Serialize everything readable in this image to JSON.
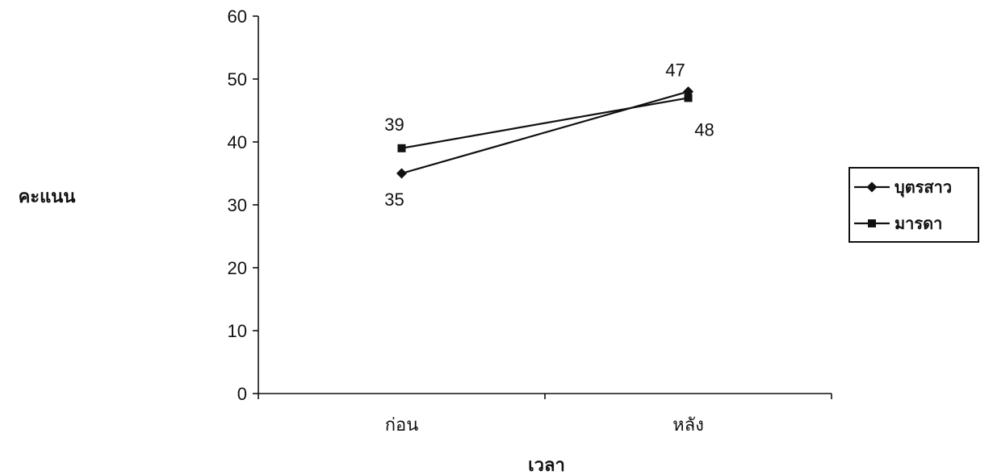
{
  "chart_data": {
    "type": "line",
    "categories": [
      "ก่อน",
      "หลัง"
    ],
    "series": [
      {
        "name": "บุตรสาว",
        "values": [
          35,
          48
        ],
        "marker": "diamond",
        "data_labels": [
          "35",
          "48"
        ]
      },
      {
        "name": "มารดา",
        "values": [
          39,
          47
        ],
        "marker": "square",
        "data_labels": [
          "39",
          "47"
        ]
      }
    ],
    "xlabel": "เวลา",
    "ylabel": "คะแนน",
    "ylim": [
      0,
      60
    ],
    "yticks": [
      "0",
      "10",
      "20",
      "30",
      "40",
      "50",
      "60"
    ],
    "grid": false,
    "legend_position": "right",
    "colors": {
      "line": "#111111",
      "background": "#ffffff"
    }
  }
}
